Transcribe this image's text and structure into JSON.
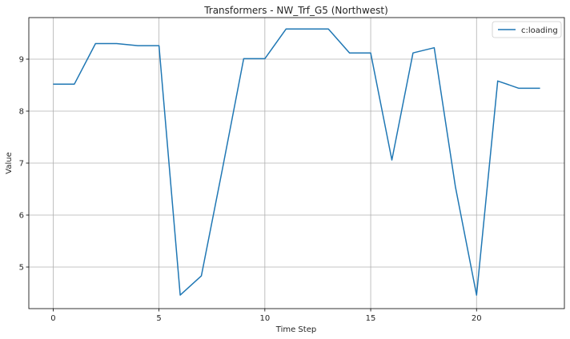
{
  "chart_data": {
    "type": "line",
    "title": "Transformers - NW_Trf_G5 (Northwest)",
    "xlabel": "Time Step",
    "ylabel": "Value",
    "x": [
      0,
      1,
      2,
      3,
      4,
      5,
      6,
      7,
      8,
      9,
      10,
      11,
      12,
      13,
      14,
      15,
      16,
      17,
      18,
      19,
      20,
      21,
      22,
      23
    ],
    "series": [
      {
        "name": "c:loading",
        "color": "#1f77b4",
        "values": [
          8.52,
          8.52,
          9.3,
          9.3,
          9.26,
          9.26,
          4.46,
          4.83,
          6.9,
          9.01,
          9.01,
          9.58,
          9.58,
          9.58,
          9.12,
          9.12,
          7.06,
          9.12,
          9.22,
          6.55,
          4.46,
          8.58,
          8.44,
          8.44
        ]
      }
    ],
    "xlim": [
      -1.15,
      24.15
    ],
    "ylim": [
      4.2,
      9.8
    ],
    "xticks": [
      0,
      5,
      10,
      15,
      20
    ],
    "yticks": [
      5,
      6,
      7,
      8,
      9
    ],
    "grid": true,
    "legend_position": "top-right"
  }
}
